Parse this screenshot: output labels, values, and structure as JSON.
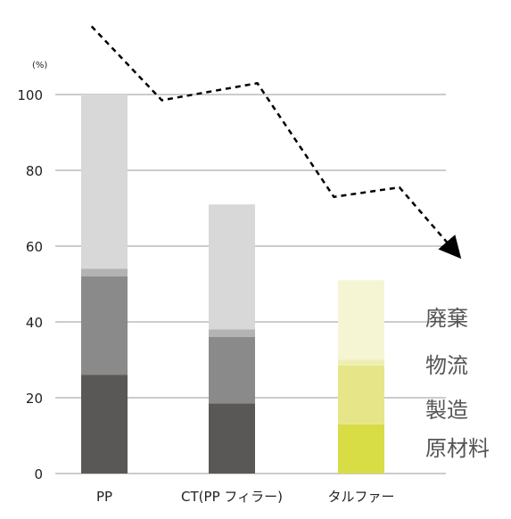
{
  "chart_data": {
    "type": "bar",
    "stacked": true,
    "unit_label": "(%)",
    "categories": [
      "PP",
      "CT(PP フィラー)",
      "タルファー"
    ],
    "ylim": [
      0,
      100
    ],
    "yticks": [
      0,
      20,
      40,
      60,
      80,
      100
    ],
    "grid": true,
    "series": [
      {
        "name": "原材料",
        "values": [
          26,
          18.5,
          13
        ],
        "colors": [
          "#595856",
          "#595856",
          "#d8dc45"
        ]
      },
      {
        "name": "製造",
        "values": [
          26,
          17.5,
          15.5
        ],
        "colors": [
          "#8a8a8a",
          "#8a8a8a",
          "#e6e688"
        ]
      },
      {
        "name": "物流",
        "values": [
          2,
          2,
          1.5
        ],
        "colors": [
          "#b3b3b3",
          "#b3b3b3",
          "#eeeeb3"
        ]
      },
      {
        "name": "廃棄",
        "values": [
          46,
          33,
          21
        ],
        "colors": [
          "#d8d8d8",
          "#d8d8d8",
          "#f5f5d4"
        ]
      }
    ],
    "trend_line": {
      "style": "dashed",
      "arrow": true,
      "points": [
        [
          -0.1,
          118
        ],
        [
          0.45,
          98.5
        ],
        [
          1.2,
          103
        ],
        [
          1.8,
          73
        ],
        [
          2.3,
          75.5
        ],
        [
          2.75,
          58
        ]
      ]
    },
    "legend_order": [
      "廃棄",
      "物流",
      "製造",
      "原材料"
    ]
  }
}
